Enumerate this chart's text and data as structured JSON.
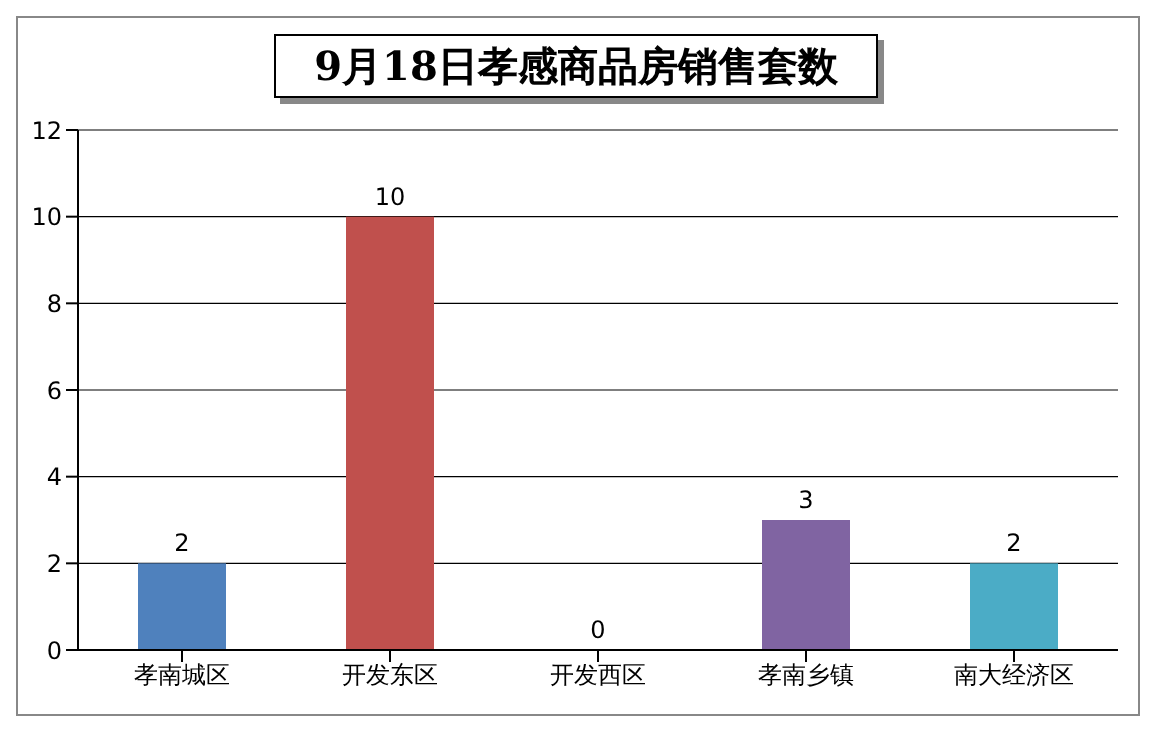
{
  "chart_data": {
    "type": "bar",
    "title": "9月18日孝感商品房销售套数",
    "categories": [
      "孝南城区",
      "开发东区",
      "开发西区",
      "孝南乡镇",
      "南大经济区"
    ],
    "values": [
      2,
      10,
      0,
      3,
      2
    ],
    "colors": [
      "#4f81bd",
      "#c0504d",
      "#9bbb59",
      "#8064a2",
      "#4bacc6"
    ],
    "ylim": [
      0,
      12
    ],
    "yticks": [
      0,
      2,
      4,
      6,
      8,
      10,
      12
    ],
    "grid": "y",
    "data_labels": true
  }
}
